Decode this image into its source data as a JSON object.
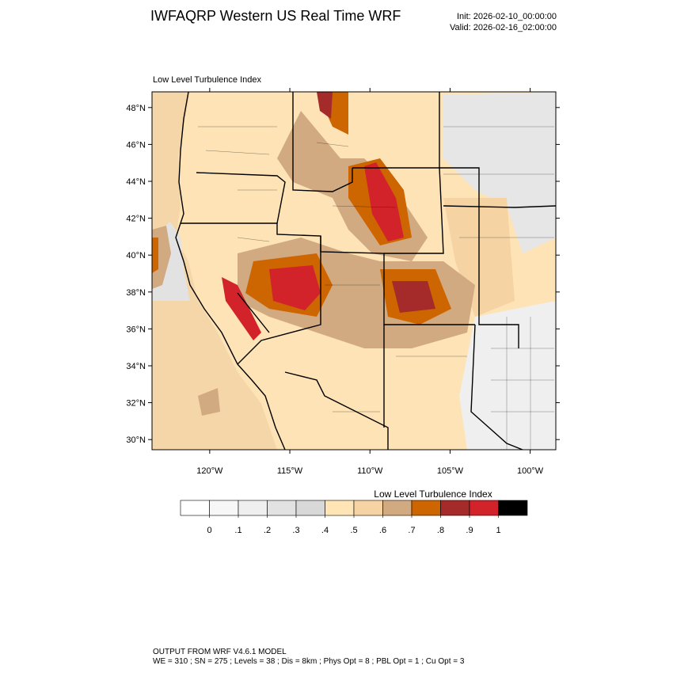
{
  "header": {
    "title": "IWFAQRP Western US Real Time WRF",
    "init": "Init: 2026-02-10_00:00:00",
    "valid": "Valid: 2026-02-16_02:00:00"
  },
  "map": {
    "subtitle": "Low Level Turbulence Index",
    "xlim": [
      -123.6,
      -98.4
    ],
    "ylim": [
      29.45,
      48.85
    ],
    "yticks": [
      {
        "value": 30,
        "label": "30°N"
      },
      {
        "value": 32,
        "label": "32°N"
      },
      {
        "value": 34,
        "label": "34°N"
      },
      {
        "value": 36,
        "label": "36°N"
      },
      {
        "value": 38,
        "label": "38°N"
      },
      {
        "value": 40,
        "label": "40°N"
      },
      {
        "value": 42,
        "label": "42°N"
      },
      {
        "value": 44,
        "label": "44°N"
      },
      {
        "value": 46,
        "label": "46°N"
      },
      {
        "value": 48,
        "label": "48°N"
      }
    ],
    "xticks": [
      {
        "value": -120,
        "label": "120°W"
      },
      {
        "value": -115,
        "label": "115°W"
      },
      {
        "value": -110,
        "label": "110°W"
      },
      {
        "value": -105,
        "label": "105°W"
      },
      {
        "value": -100,
        "label": "100°W"
      }
    ]
  },
  "colorbar": {
    "title": "Low Level Turbulence Index",
    "levels": [
      0,
      {
        "value": 0.1,
        "label": ".1"
      },
      {
        "value": 0.2,
        "label": ".2"
      },
      {
        "value": 0.3,
        "label": ".3"
      },
      {
        "value": 0.4,
        "label": ".4"
      },
      {
        "value": 0.5,
        "label": ".5"
      },
      {
        "value": 0.6,
        "label": ".6"
      },
      {
        "value": 0.7,
        "label": ".7"
      },
      {
        "value": 0.8,
        "label": ".8"
      },
      {
        "value": 0.9,
        "label": ".9"
      },
      1
    ],
    "colors": [
      "#ffffff",
      "#f7f7f7",
      "#efefef",
      "#e2e2e2",
      "#d8d8d8",
      "#ffe4b5",
      "#f5d3a3",
      "#d2aa82",
      "#cd6600",
      "#a52a2a",
      "#d2232a",
      "#000000"
    ]
  },
  "footer": {
    "line1": "OUTPUT FROM WRF V4.6.1 MODEL",
    "line2": "WE = 310 ; SN = 275 ; Levels = 38 ; Dis = 8km ; Phys Opt = 8 ; PBL Opt = 1 ; Cu Opt = 3"
  }
}
